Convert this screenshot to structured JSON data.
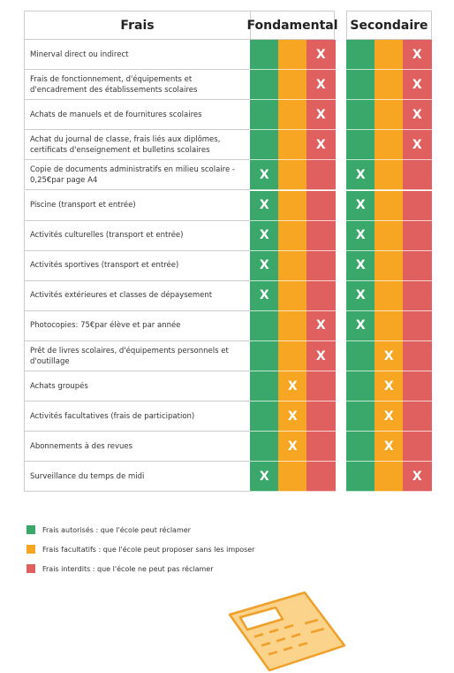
{
  "table": {
    "headers": [
      "Frais",
      "Fondamental",
      "Secondaire"
    ],
    "rows": [
      {
        "label": "Minerval direct ou indirect",
        "fondamental": [
          null,
          null,
          "X"
        ],
        "secondaire": [
          null,
          null,
          "X"
        ]
      },
      {
        "label": "Frais de fonctionnement, d'équipements et d'encadrement des établissements scolaires",
        "fondamental": [
          null,
          null,
          "X"
        ],
        "secondaire": [
          null,
          null,
          "X"
        ]
      },
      {
        "label": "Achats de manuels et de fournitures scolaires",
        "fondamental": [
          null,
          null,
          "X"
        ],
        "secondaire": [
          null,
          null,
          "X"
        ]
      },
      {
        "label": "Achat du journal de classe, frais liés aux diplômes, certificats d'enseignement et bulletins scolaires",
        "fondamental": [
          null,
          null,
          "X"
        ],
        "secondaire": [
          null,
          null,
          "X"
        ]
      },
      {
        "label": "Copie de documents administratifs en milieu scolaire - 0,25€par page A4",
        "fondamental": [
          "X",
          null,
          null
        ],
        "secondaire": [
          "X",
          null,
          null
        ]
      },
      {
        "label": "Piscine (transport et entrée)",
        "fondamental": [
          "X",
          null,
          null
        ],
        "secondaire": [
          "X",
          null,
          null
        ]
      },
      {
        "label": "Activités culturelles (transport et entrée)",
        "fondamental": [
          "X",
          null,
          null
        ],
        "secondaire": [
          "X",
          null,
          null
        ]
      },
      {
        "label": "Activités sportives (transport et entrée)",
        "fondamental": [
          "X",
          null,
          null
        ],
        "secondaire": [
          "X",
          null,
          null
        ]
      },
      {
        "label": "Activités extérieures et classes de dépaysement",
        "fondamental": [
          "X",
          null,
          null
        ],
        "secondaire": [
          "X",
          null,
          null
        ]
      },
      {
        "label": "Photocopies: 75€par élève et par année",
        "fondamental": [
          null,
          null,
          "X"
        ],
        "secondaire": [
          "X",
          null,
          null
        ]
      },
      {
        "label": "Prêt de livres scolaires, d'équipements personnels et d'outillage",
        "fondamental": [
          null,
          null,
          "X"
        ],
        "secondaire": [
          null,
          "X",
          null
        ]
      },
      {
        "label": "Achats groupés",
        "fondamental": [
          null,
          "X",
          null
        ],
        "secondaire": [
          null,
          "X",
          null
        ]
      },
      {
        "label": "Activités facultatives (frais de participation)",
        "fondamental": [
          null,
          "X",
          null
        ],
        "secondaire": [
          null,
          "X",
          null
        ]
      },
      {
        "label": "Abonnements à des revues",
        "fondamental": [
          null,
          "X",
          null
        ],
        "secondaire": [
          null,
          "X",
          null
        ]
      },
      {
        "label": "Surveillance du temps de midi",
        "fondamental": [
          "X",
          null,
          null
        ],
        "secondaire": [
          null,
          null,
          "X"
        ]
      }
    ]
  },
  "legend": [
    {
      "label": "Frais autorisés : que l'école peut réclamer",
      "color": "#3aa86a"
    },
    {
      "label": "Frais facultatifs : que l'école peut proposer sans les imposer",
      "color": "#f6a623"
    },
    {
      "label": "Frais interdits : que l'école ne peut pas réclamer",
      "color": "#e0605f"
    }
  ]
}
